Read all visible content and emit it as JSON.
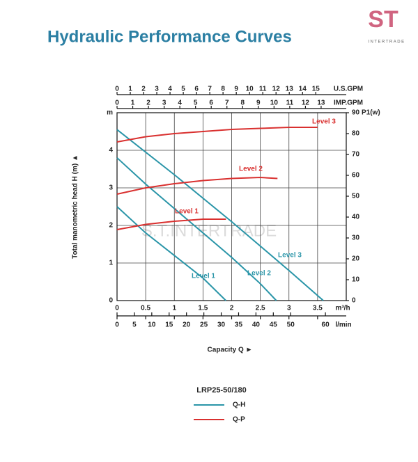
{
  "chart_data": {
    "type": "line",
    "title": "Hydraulic Performance Curves",
    "logo_mark": "ST",
    "logo_text": "INTERTRADE",
    "watermark": "S.T.INTERTRADE",
    "y_label": "Total manometric head H (m) ▲",
    "y_unit": "m",
    "y2_unit": "P1(w)",
    "x_label": "Capacity Q ►",
    "x_unit": "m³/h",
    "xlim": [
      0,
      4
    ],
    "xticks": [
      0,
      0.5,
      1,
      1.5,
      2,
      2.5,
      3,
      3.5
    ],
    "ylim": [
      0,
      5
    ],
    "yticks": [
      0,
      1,
      2,
      3,
      4
    ],
    "y2lim": [
      0,
      90
    ],
    "y2ticks": [
      0,
      10,
      20,
      30,
      40,
      50,
      60,
      70,
      80,
      90
    ],
    "grid": true,
    "top_axes": [
      {
        "label": "U.S.GPM",
        "xlim": [
          0,
          17.3
        ],
        "xticks": [
          0,
          1,
          2,
          3,
          4,
          5,
          6,
          7,
          8,
          9,
          10,
          11,
          12,
          13,
          14,
          15
        ]
      },
      {
        "label": "IMP.GPM",
        "xlim": [
          0,
          14.6
        ],
        "xticks": [
          0,
          1,
          2,
          3,
          4,
          5,
          6,
          7,
          8,
          9,
          10,
          11,
          12,
          13
        ]
      }
    ],
    "bottom_axis2": {
      "label": "l/min",
      "xlim": [
        0,
        66
      ],
      "xticks": [
        0,
        5,
        10,
        15,
        20,
        25,
        30,
        35,
        40,
        45,
        50,
        60
      ]
    },
    "legend_title": "LRP25-50/180",
    "groups": [
      {
        "name": "Q-H",
        "color": "#2a95a8",
        "axis": "y",
        "series": [
          {
            "name": "Level 1",
            "x": [
              0,
              0.5,
              1,
              1.5,
              1.9
            ],
            "values": [
              2.5,
              1.8,
              1.2,
              0.6,
              0
            ]
          },
          {
            "name": "Level 2",
            "x": [
              0,
              0.5,
              1,
              1.5,
              2,
              2.5,
              2.78
            ],
            "values": [
              3.8,
              3.1,
              2.45,
              1.8,
              1.15,
              0.45,
              0
            ]
          },
          {
            "name": "Level 3",
            "x": [
              0,
              1,
              2,
              3,
              3.6
            ],
            "values": [
              4.55,
              3.35,
              2.1,
              0.8,
              0
            ]
          }
        ]
      },
      {
        "name": "Q-P",
        "color": "#d9302f",
        "axis": "y2",
        "series": [
          {
            "name": "Level 1",
            "x": [
              0,
              0.5,
              1,
              1.5,
              1.9
            ],
            "values": [
              34,
              36.5,
              38,
              39,
              39
            ]
          },
          {
            "name": "Level 2",
            "x": [
              0,
              0.5,
              1,
              1.5,
              2,
              2.5,
              2.8
            ],
            "values": [
              51,
              54,
              56,
              57.5,
              58.5,
              59,
              58.5
            ]
          },
          {
            "name": "Level 3",
            "x": [
              0,
              0.5,
              1,
              1.5,
              2,
              2.5,
              3,
              3.5
            ],
            "values": [
              76,
              78.5,
              80,
              81,
              82,
              82.5,
              83,
              83
            ]
          }
        ]
      }
    ]
  }
}
